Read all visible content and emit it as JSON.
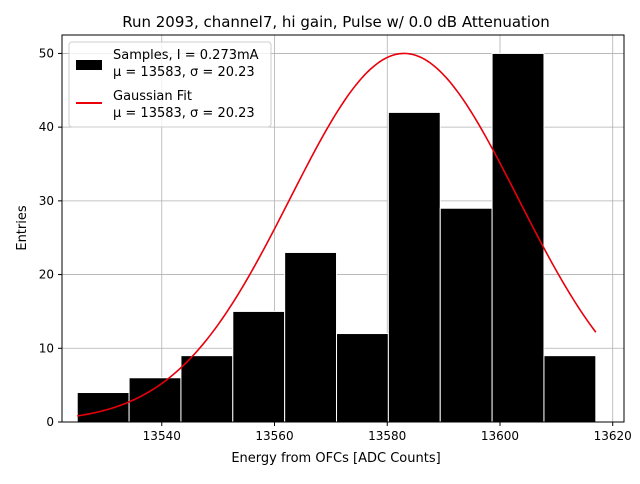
{
  "chart_data": {
    "type": "bar",
    "title": "Run 2093, channel7, hi gain, Pulse w/ 0.0 dB Attenuation",
    "xlabel": "Energy from OFCs [ADC Counts]",
    "ylabel": "Entries",
    "xlim": [
      13522.3,
      13622.0
    ],
    "ylim": [
      0,
      52.5
    ],
    "grid": true,
    "legend_position": "top-left",
    "xticks": [
      13540,
      13560,
      13580,
      13600,
      13620
    ],
    "xtick_labels": [
      "13540",
      "13560",
      "13580",
      "13600",
      "13620"
    ],
    "yticks": [
      0,
      10,
      20,
      30,
      40,
      50
    ],
    "ytick_labels": [
      "0",
      "10",
      "20",
      "30",
      "40",
      "50"
    ],
    "bins": [
      {
        "start": 13525.0,
        "end": 13534.2,
        "count": 4
      },
      {
        "start": 13534.2,
        "end": 13543.4,
        "count": 6
      },
      {
        "start": 13543.4,
        "end": 13552.6,
        "count": 9
      },
      {
        "start": 13552.6,
        "end": 13561.8,
        "count": 15
      },
      {
        "start": 13561.8,
        "end": 13571.0,
        "count": 23
      },
      {
        "start": 13571.0,
        "end": 13580.2,
        "count": 12
      },
      {
        "start": 13580.2,
        "end": 13589.4,
        "count": 42
      },
      {
        "start": 13589.4,
        "end": 13598.6,
        "count": 29
      },
      {
        "start": 13598.6,
        "end": 13607.8,
        "count": 50
      },
      {
        "start": 13607.8,
        "end": 13617.0,
        "count": 9
      }
    ],
    "series": [
      {
        "name": "Samples, I = 0.273mA",
        "name_line2": "μ = 13583, σ = 20.23",
        "kind": "histogram",
        "color": "#000000"
      },
      {
        "name": "Gaussian Fit",
        "name_line2": "μ = 13583, σ = 20.23",
        "kind": "line",
        "color": "#e8000b",
        "fit": {
          "amplitude": 50,
          "mu": 13583,
          "sigma": 20.23,
          "x_start": 13525.0,
          "x_end": 13617.0
        }
      }
    ]
  }
}
